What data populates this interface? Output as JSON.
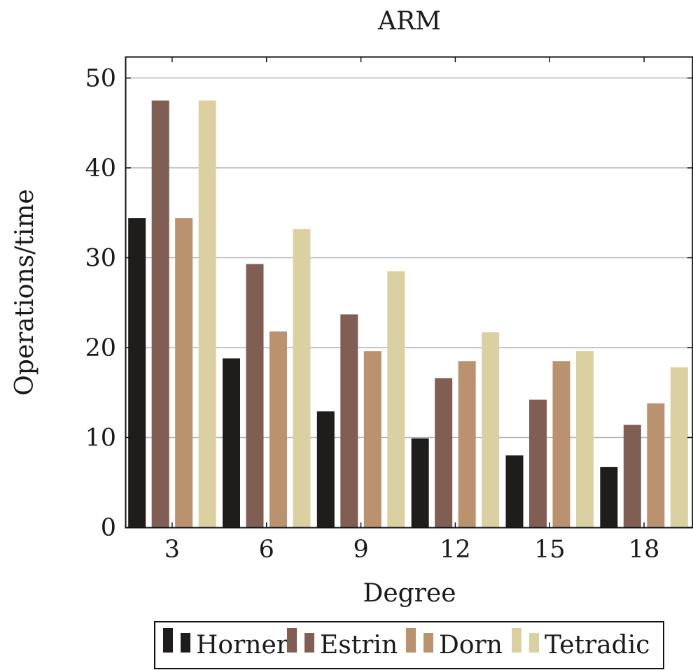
{
  "chart_data": {
    "type": "bar",
    "title": "ARM",
    "xlabel": "Degree",
    "ylabel": "Operations/time",
    "categories": [
      "3",
      "6",
      "9",
      "12",
      "15",
      "18"
    ],
    "ylim": [
      0,
      52.3
    ],
    "yticks": [
      0,
      10,
      20,
      30,
      40,
      50
    ],
    "grid": "horizontal",
    "legend_position": "bottom-center",
    "series": [
      {
        "name": "Horner",
        "color": "#1f1c1c",
        "values": [
          34.4,
          18.8,
          12.9,
          9.9,
          8.0,
          6.7
        ]
      },
      {
        "name": "Estrin",
        "color": "#815e54",
        "values": [
          47.5,
          29.3,
          23.7,
          16.6,
          14.2,
          11.4
        ]
      },
      {
        "name": "Dorn",
        "color": "#ba926f",
        "values": [
          34.4,
          21.8,
          19.6,
          18.5,
          18.5,
          13.8
        ]
      },
      {
        "name": "Tetradic",
        "color": "#dbd0a1",
        "values": [
          47.5,
          33.2,
          28.5,
          21.7,
          19.6,
          17.8
        ]
      }
    ]
  }
}
